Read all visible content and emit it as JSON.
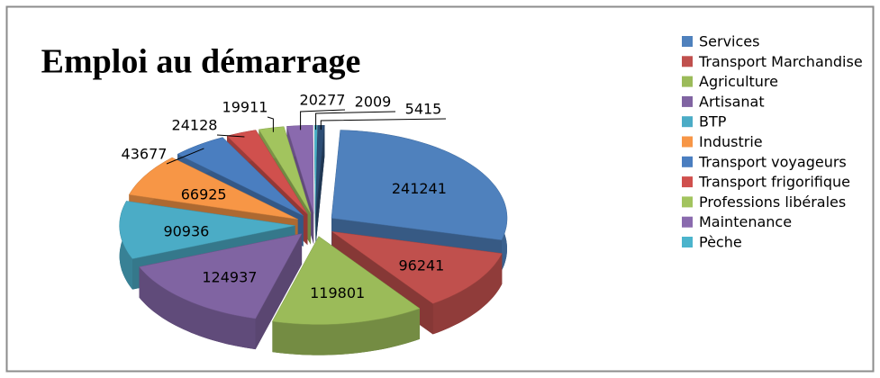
{
  "chart_data": {
    "type": "pie",
    "title": "Emploi au démarrage",
    "categories": [
      "Services",
      "Transport Marchandise",
      "Agriculture",
      "Artisanat",
      "BTP",
      "Industrie",
      "Transport voyageurs",
      "Transport frigorifique",
      "Professions libérales",
      "Maintenance",
      "Pèche",
      null
    ],
    "values": [
      241241,
      96241,
      119801,
      124937,
      90936,
      66925,
      43677,
      24128,
      19911,
      20277,
      2009,
      5415
    ],
    "colors": [
      "#4F81BD",
      "#C0504D",
      "#9BBB59",
      "#8064A2",
      "#4BACC6",
      "#F79646",
      "#4A7EC0",
      "#D0504D",
      "#A2C45E",
      "#8A6AAE",
      "#4BB4CC",
      "#2C4D75"
    ],
    "legend": "right"
  }
}
